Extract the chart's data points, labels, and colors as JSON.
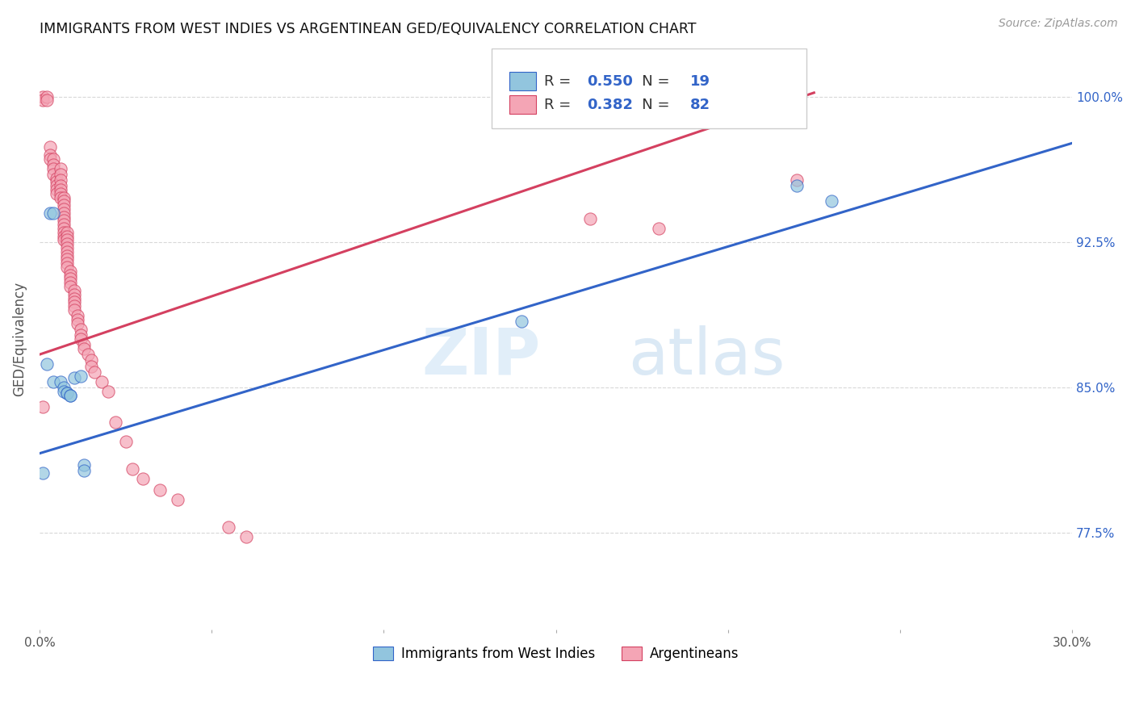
{
  "title": "IMMIGRANTS FROM WEST INDIES VS ARGENTINEAN GED/EQUIVALENCY CORRELATION CHART",
  "source": "Source: ZipAtlas.com",
  "ylabel": "GED/Equivalency",
  "xlim": [
    0.0,
    0.3
  ],
  "ylim": [
    0.725,
    1.025
  ],
  "xticks": [
    0.0,
    0.05,
    0.1,
    0.15,
    0.2,
    0.25,
    0.3
  ],
  "xticklabels": [
    "0.0%",
    "",
    "",
    "",
    "",
    "",
    "30.0%"
  ],
  "yticks": [
    0.775,
    0.85,
    0.925,
    1.0
  ],
  "yticklabels": [
    "77.5%",
    "85.0%",
    "92.5%",
    "100.0%"
  ],
  "blue_R": 0.55,
  "blue_N": 19,
  "pink_R": 0.382,
  "pink_N": 82,
  "blue_scatter_x": [
    0.003,
    0.004,
    0.004,
    0.006,
    0.007,
    0.007,
    0.008,
    0.008,
    0.009,
    0.009,
    0.01,
    0.012,
    0.013,
    0.013,
    0.001,
    0.002,
    0.14,
    0.22,
    0.23
  ],
  "blue_scatter_y": [
    0.94,
    0.94,
    0.853,
    0.853,
    0.85,
    0.848,
    0.847,
    0.847,
    0.846,
    0.846,
    0.855,
    0.856,
    0.81,
    0.807,
    0.806,
    0.862,
    0.884,
    0.954,
    0.946
  ],
  "pink_scatter_x": [
    0.001,
    0.001,
    0.002,
    0.002,
    0.003,
    0.003,
    0.003,
    0.004,
    0.004,
    0.004,
    0.004,
    0.005,
    0.005,
    0.005,
    0.005,
    0.005,
    0.006,
    0.006,
    0.006,
    0.006,
    0.006,
    0.006,
    0.006,
    0.007,
    0.007,
    0.007,
    0.007,
    0.007,
    0.007,
    0.007,
    0.007,
    0.007,
    0.007,
    0.007,
    0.007,
    0.008,
    0.008,
    0.008,
    0.008,
    0.008,
    0.008,
    0.008,
    0.008,
    0.008,
    0.008,
    0.009,
    0.009,
    0.009,
    0.009,
    0.009,
    0.01,
    0.01,
    0.01,
    0.01,
    0.01,
    0.01,
    0.011,
    0.011,
    0.011,
    0.012,
    0.012,
    0.012,
    0.013,
    0.013,
    0.014,
    0.015,
    0.015,
    0.016,
    0.018,
    0.02,
    0.022,
    0.025,
    0.027,
    0.03,
    0.035,
    0.04,
    0.055,
    0.06,
    0.16,
    0.18,
    0.22,
    0.001
  ],
  "pink_scatter_y": [
    1.0,
    0.998,
    1.0,
    0.998,
    0.974,
    0.97,
    0.968,
    0.968,
    0.965,
    0.963,
    0.96,
    0.958,
    0.956,
    0.954,
    0.952,
    0.95,
    0.963,
    0.96,
    0.957,
    0.954,
    0.952,
    0.95,
    0.948,
    0.948,
    0.946,
    0.944,
    0.942,
    0.94,
    0.938,
    0.936,
    0.934,
    0.932,
    0.93,
    0.928,
    0.926,
    0.93,
    0.928,
    0.926,
    0.924,
    0.922,
    0.92,
    0.918,
    0.916,
    0.914,
    0.912,
    0.91,
    0.908,
    0.906,
    0.904,
    0.902,
    0.9,
    0.898,
    0.896,
    0.894,
    0.892,
    0.89,
    0.887,
    0.885,
    0.883,
    0.88,
    0.877,
    0.875,
    0.872,
    0.87,
    0.867,
    0.864,
    0.861,
    0.858,
    0.853,
    0.848,
    0.832,
    0.822,
    0.808,
    0.803,
    0.797,
    0.792,
    0.778,
    0.773,
    0.937,
    0.932,
    0.957,
    0.84
  ],
  "blue_line_x": [
    0.0,
    0.3
  ],
  "blue_line_y": [
    0.816,
    0.976
  ],
  "pink_line_x": [
    0.0,
    0.225
  ],
  "pink_line_y": [
    0.867,
    1.002
  ],
  "legend_label_blue": "Immigrants from West Indies",
  "legend_label_pink": "Argentineans",
  "blue_color": "#92c5de",
  "pink_color": "#f4a5b5",
  "blue_line_color": "#3264c8",
  "pink_line_color": "#d44060",
  "background_color": "#ffffff",
  "grid_color": "#d8d8d8"
}
